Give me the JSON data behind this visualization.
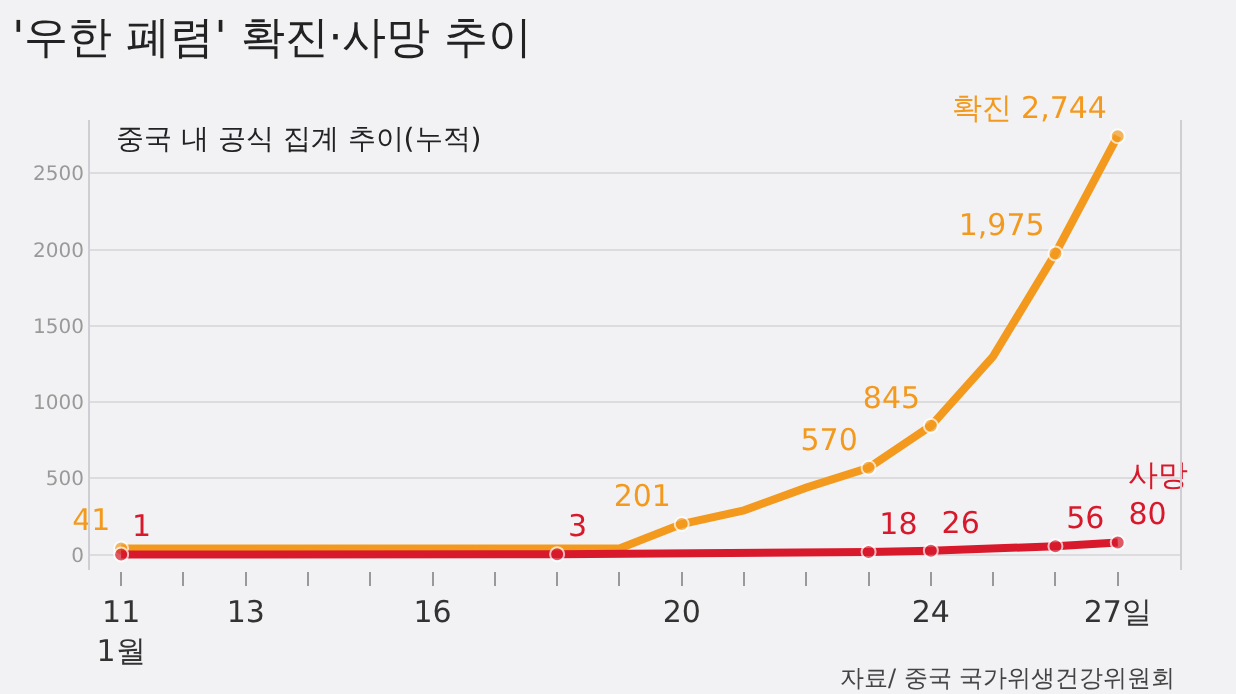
{
  "chart_data": {
    "type": "line",
    "title": "'우한 폐렴' 확진·사망 추이",
    "subtitle": "중국 내 공식 집계 추이(누적)",
    "annotations": [
      "자료/ 중국 국가위생건강위원회"
    ],
    "series": [
      {
        "color": "#f39a1e",
        "x": [
          11,
          19,
          20,
          21,
          22,
          23,
          24,
          25,
          26,
          27
        ],
        "values": [
          41,
          41,
          201,
          291,
          440,
          570,
          845,
          1300,
          1975,
          2744
        ],
        "value_labels": [
          "41",
          null,
          "201",
          null,
          null,
          "570",
          "845",
          null,
          "1,975",
          "확진 2,744"
        ]
      },
      {
        "color": "#d7192b",
        "x": [
          11,
          18,
          23,
          24,
          26,
          27
        ],
        "values": [
          1,
          3,
          18,
          26,
          56,
          80
        ],
        "value_labels": [
          "1",
          "3",
          "18",
          "26",
          "56",
          "사망\n80"
        ]
      }
    ],
    "xlim": [
      10.5,
      28
    ],
    "xticks": [
      {
        "value": 11,
        "label": "11\n1월"
      },
      {
        "value": 12,
        "label": null
      },
      {
        "value": 13,
        "label": "13"
      },
      {
        "value": 14,
        "label": null
      },
      {
        "value": 15,
        "label": null
      },
      {
        "value": 16,
        "label": "16"
      },
      {
        "value": 17,
        "label": null
      },
      {
        "value": 18,
        "label": null
      },
      {
        "value": 19,
        "label": null
      },
      {
        "value": 20,
        "label": "20"
      },
      {
        "value": 21,
        "label": null
      },
      {
        "value": 22,
        "label": null
      },
      {
        "value": 23,
        "label": null
      },
      {
        "value": 24,
        "label": "24"
      },
      {
        "value": 25,
        "label": null
      },
      {
        "value": 26,
        "label": null
      },
      {
        "value": 27,
        "label": "27일"
      }
    ],
    "ylim": [
      -100,
      2850
    ],
    "yticks": [
      0,
      500,
      1000,
      1500,
      2000,
      2500
    ],
    "grid": "y",
    "marker": "circle",
    "line_style": "solid"
  }
}
